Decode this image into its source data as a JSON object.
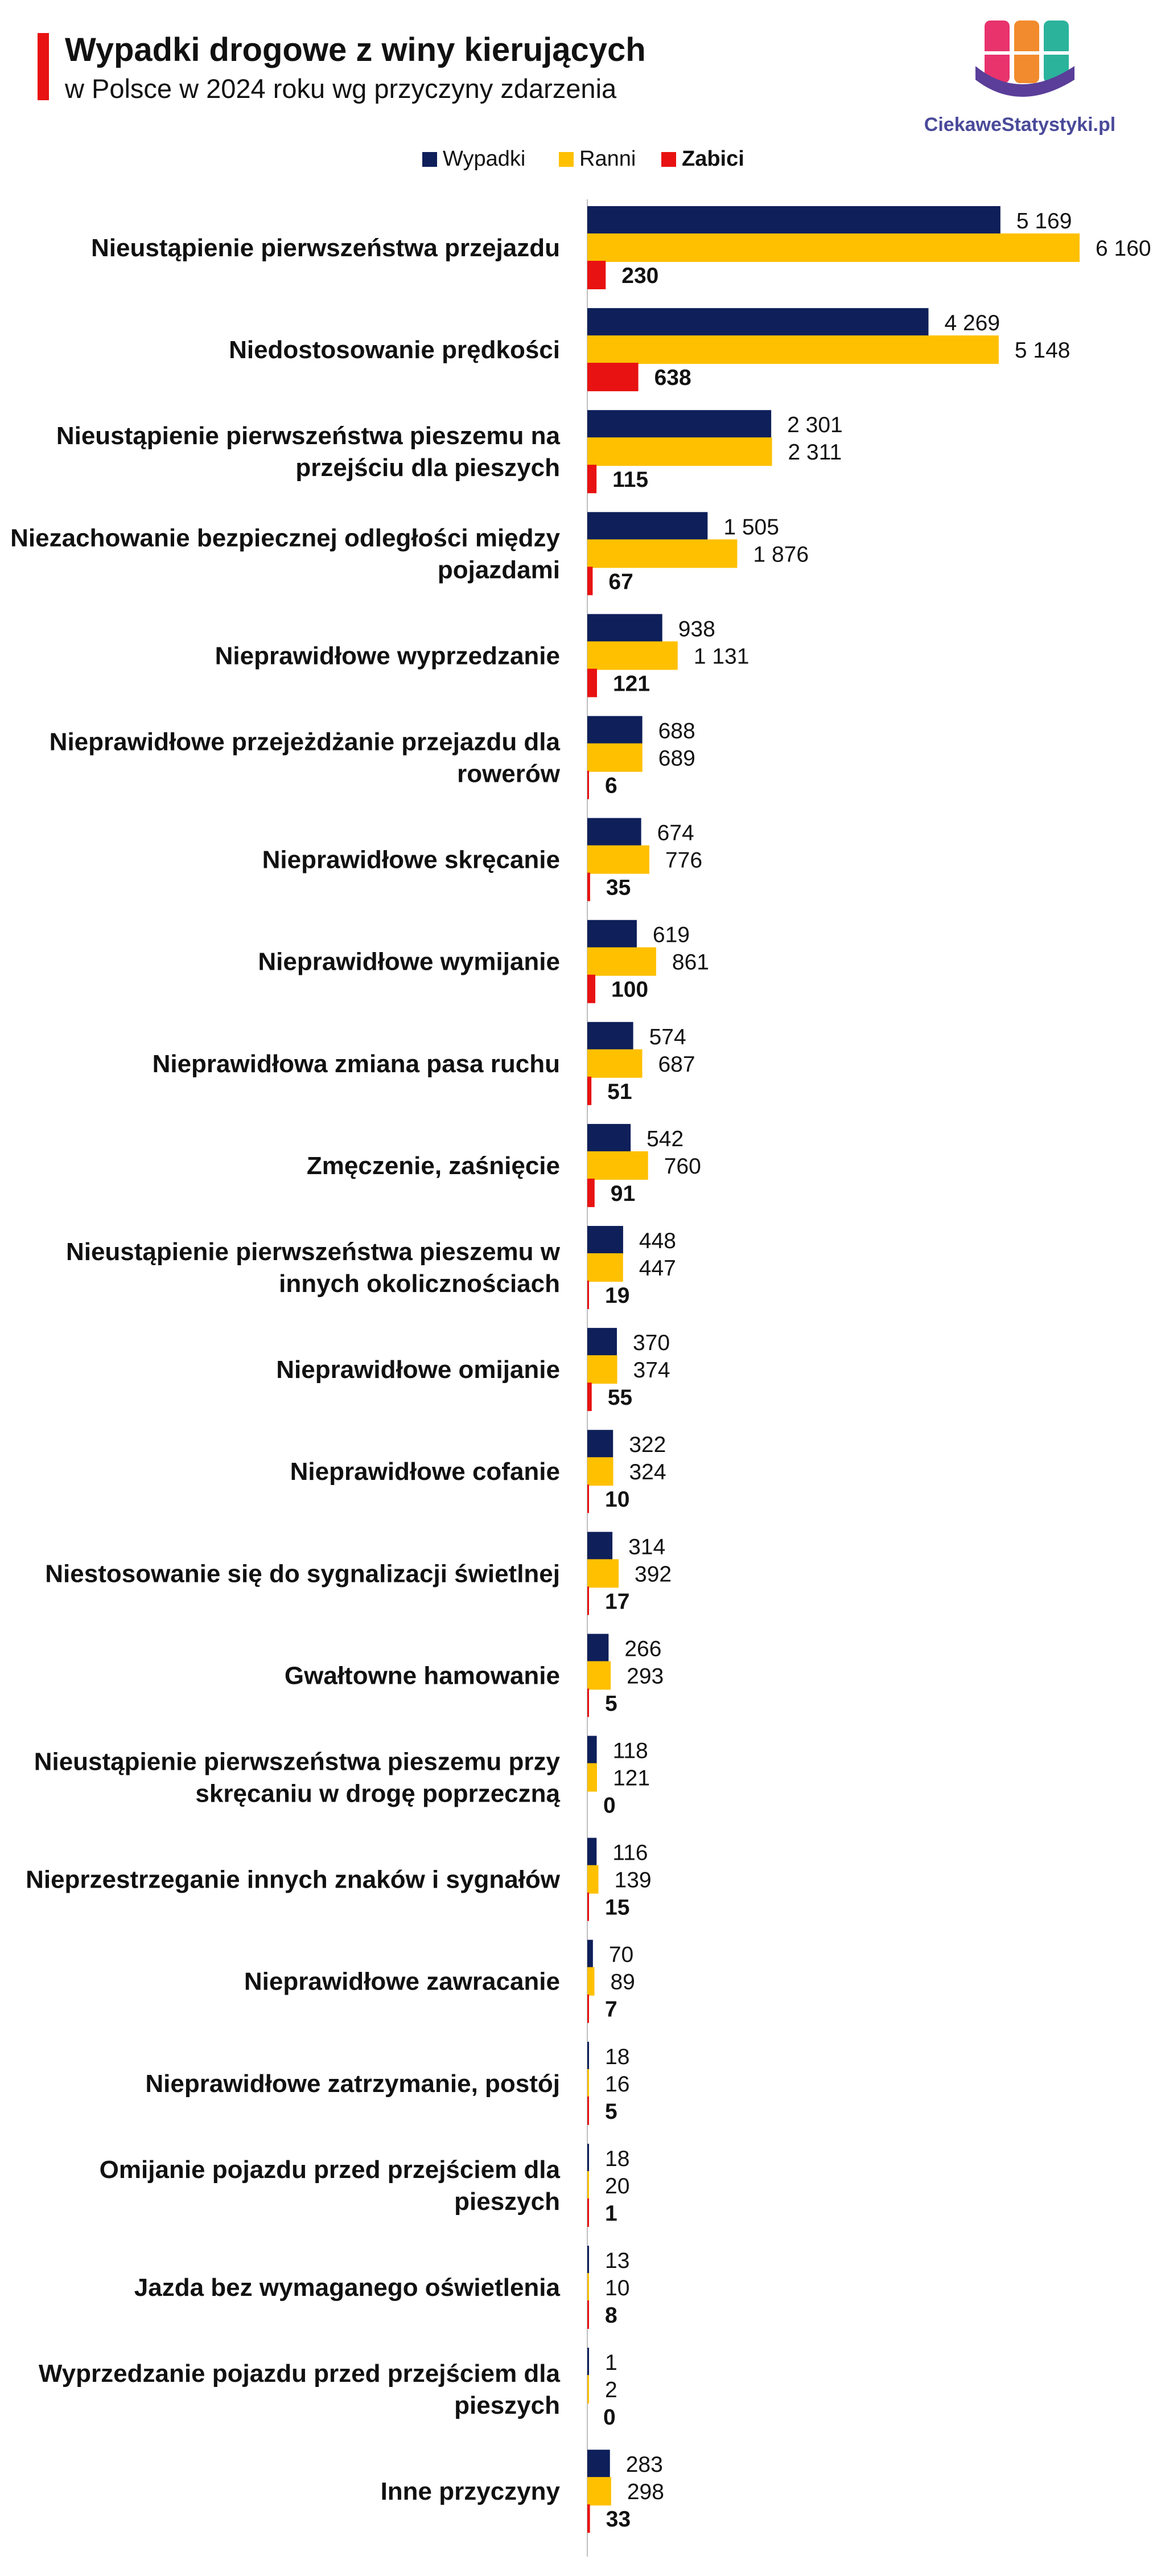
{
  "header": {
    "title": "Wypadki drogowe z winy kierujących",
    "subtitle": "w Polsce w 2024 roku wg przyczyny zdarzenia",
    "logo_text": "CiekaweStatystyki.pl"
  },
  "colors": {
    "wypadki": "#0e1f5a",
    "ranni": "#ffc000",
    "zabici": "#e81212",
    "accent": "#e81212"
  },
  "chart_data": {
    "type": "bar",
    "orientation": "horizontal",
    "legend_position": "top",
    "grid": false,
    "xlim": [
      0,
      6160
    ],
    "categories": [
      [
        "Nieustąpienie pierwszeństwa przejazdu"
      ],
      [
        "Niedostosowanie prędkości"
      ],
      [
        "Nieustąpienie pierwszeństwa pieszemu na",
        "przejściu dla pieszych"
      ],
      [
        "Niezachowanie bezpiecznej odległości między",
        "pojazdami"
      ],
      [
        "Nieprawidłowe wyprzedzanie"
      ],
      [
        "Nieprawidłowe przejeżdżanie przejazdu dla",
        "rowerów"
      ],
      [
        "Nieprawidłowe skręcanie"
      ],
      [
        "Nieprawidłowe wymijanie"
      ],
      [
        "Nieprawidłowa zmiana pasa ruchu"
      ],
      [
        "Zmęczenie, zaśnięcie"
      ],
      [
        "Nieustąpienie pierwszeństwa pieszemu w",
        "innych okolicznościach"
      ],
      [
        "Nieprawidłowe omijanie"
      ],
      [
        "Nieprawidłowe cofanie"
      ],
      [
        "Niestosowanie się do sygnalizacji świetlnej"
      ],
      [
        "Gwałtowne hamowanie"
      ],
      [
        "Nieustąpienie pierwszeństwa pieszemu przy",
        "skręcaniu w drogę poprzeczną"
      ],
      [
        "Nieprzestrzeganie innych znaków i sygnałów"
      ],
      [
        "Nieprawidłowe zawracanie"
      ],
      [
        "Nieprawidłowe zatrzymanie, postój"
      ],
      [
        "Omijanie pojazdu przed przejściem dla",
        "pieszych"
      ],
      [
        "Jazda bez wymaganego oświetlenia"
      ],
      [
        "Wyprzedzanie pojazdu przed przejściem dla",
        "pieszych"
      ],
      [
        "Inne przyczyny"
      ]
    ],
    "series": [
      {
        "name": "Wypadki",
        "values": [
          5169,
          4269,
          2301,
          1505,
          938,
          688,
          674,
          619,
          574,
          542,
          448,
          370,
          322,
          314,
          266,
          118,
          116,
          70,
          18,
          18,
          13,
          1,
          283
        ],
        "labels": [
          "5 169",
          "4 269",
          "2 301",
          "1 505",
          "938",
          "688",
          "674",
          "619",
          "574",
          "542",
          "448",
          "370",
          "322",
          "314",
          "266",
          "118",
          "116",
          "70",
          "18",
          "18",
          "13",
          "1",
          "283"
        ]
      },
      {
        "name": "Ranni",
        "values": [
          6160,
          5148,
          2311,
          1876,
          1131,
          689,
          776,
          861,
          687,
          760,
          447,
          374,
          324,
          392,
          293,
          121,
          139,
          89,
          16,
          20,
          10,
          2,
          298
        ],
        "labels": [
          "6 160",
          "5 148",
          "2 311",
          "1 876",
          "1 131",
          "689",
          "776",
          "861",
          "687",
          "760",
          "447",
          "374",
          "324",
          "392",
          "293",
          "121",
          "139",
          "89",
          "16",
          "20",
          "10",
          "2",
          "298"
        ]
      },
      {
        "name": "Zabici",
        "values": [
          230,
          638,
          115,
          67,
          121,
          6,
          35,
          100,
          51,
          91,
          19,
          55,
          10,
          17,
          5,
          0,
          15,
          7,
          5,
          1,
          8,
          0,
          33
        ],
        "labels": [
          "230",
          "638",
          "115",
          "67",
          "121",
          "6",
          "35",
          "100",
          "51",
          "91",
          "19",
          "55",
          "10",
          "17",
          "5",
          "0",
          "15",
          "7",
          "5",
          "1",
          "8",
          "0",
          "33"
        ]
      }
    ]
  }
}
